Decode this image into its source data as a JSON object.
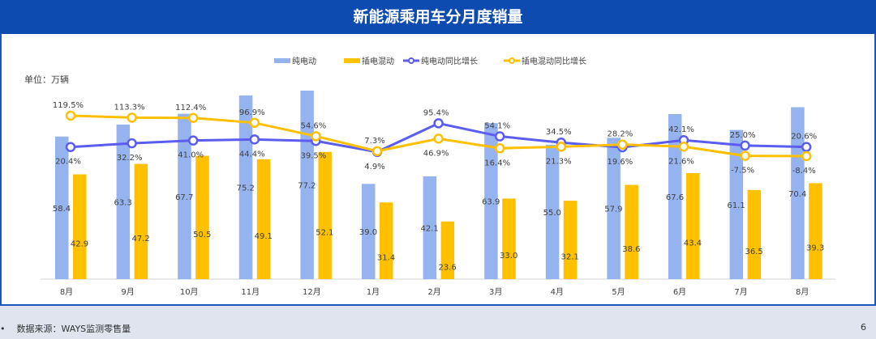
{
  "title": "新能源乘用车分月度销量",
  "footer": {
    "bullet": "•",
    "source": "数据来源：WAYS监测零售量",
    "page_number": "6"
  },
  "chart_data": {
    "type": "bar+line",
    "unit_label": "单位：万辆",
    "categories": [
      "8月",
      "9月",
      "10月",
      "11月",
      "12月",
      "1月",
      "2月",
      "3月",
      "4月",
      "5月",
      "6月",
      "7月",
      "8月"
    ],
    "bar_series": [
      {
        "name": "纯电动",
        "color": "#95b4ef",
        "values": [
          58.4,
          63.3,
          67.7,
          75.2,
          77.2,
          39.0,
          42.1,
          63.9,
          55.0,
          57.9,
          67.6,
          61.1,
          70.4
        ]
      },
      {
        "name": "插电混动",
        "color": "#ffc000",
        "values": [
          42.9,
          47.2,
          50.5,
          49.1,
          52.1,
          31.4,
          23.6,
          33.0,
          32.1,
          38.6,
          43.4,
          36.5,
          39.3
        ]
      }
    ],
    "line_series": [
      {
        "name": "纯电动同比增长",
        "color": "#5b5cf0",
        "unit": "%",
        "values": [
          20.4,
          32.2,
          41.0,
          44.4,
          39.5,
          4.9,
          95.4,
          54.1,
          34.5,
          19.6,
          42.1,
          25.0,
          20.6
        ],
        "label_pos": [
          "below",
          "below",
          "below",
          "below",
          "below",
          "below",
          "above",
          "above",
          "above",
          "below",
          "above",
          "above",
          "above"
        ]
      },
      {
        "name": "插电混动同比增长",
        "color": "#ffc000",
        "unit": "%",
        "values": [
          119.5,
          113.3,
          112.4,
          96.9,
          54.6,
          7.3,
          46.9,
          16.4,
          21.3,
          28.2,
          21.6,
          -7.5,
          -8.4
        ],
        "label_pos": [
          "above",
          "above",
          "above",
          "above",
          "above",
          "above",
          "below",
          "below",
          "below",
          "above",
          "below",
          "below",
          "below"
        ]
      }
    ],
    "legend_position": "top",
    "grid": false
  }
}
